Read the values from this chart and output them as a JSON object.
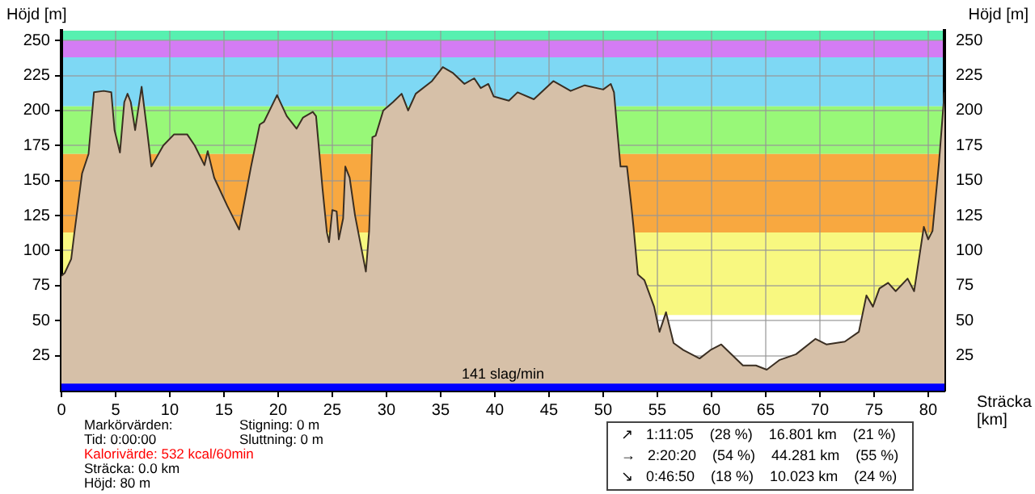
{
  "chart_data": {
    "type": "area",
    "ylabel": "Höjd [m]",
    "y2label": "Höjd [m]",
    "xlabel": "Sträcka [km]",
    "x": [
      0,
      0.3,
      0.9,
      1.2,
      1.9,
      2.5,
      3.0,
      3.9,
      4.6,
      4.9,
      5.4,
      5.8,
      6.1,
      6.4,
      6.8,
      7.4,
      7.9,
      8.3,
      9.4,
      10.4,
      11.6,
      12.3,
      13.2,
      13.5,
      14.1,
      15.3,
      16.4,
      17.5,
      18.3,
      18.7,
      19.9,
      20.8,
      21.7,
      22.3,
      23.2,
      23.5,
      24.1,
      24.5,
      24.7,
      25.0,
      25.4,
      25.6,
      26.0,
      26.2,
      26.6,
      27.1,
      27.5,
      28.1,
      28.4,
      28.7,
      29.0,
      29.7,
      30.6,
      31.4,
      32.0,
      32.7,
      34.2,
      35.2,
      36.1,
      37.2,
      38.1,
      38.7,
      39.4,
      39.9,
      41.3,
      42.1,
      43.6,
      45.4,
      47.0,
      48.3,
      50.0,
      50.7,
      51.0,
      51.3,
      51.6,
      52.2,
      52.6,
      52.8,
      53.2,
      53.8,
      54.7,
      55.2,
      55.8,
      56.5,
      57.4,
      58.9,
      59.9,
      60.9,
      62.9,
      64.1,
      65.1,
      66.3,
      67.8,
      69.6,
      70.6,
      72.3,
      73.6,
      74.3,
      74.9,
      75.5,
      76.3,
      77.0,
      78.1,
      78.7,
      79.6,
      80.0,
      80.4,
      81.0,
      81.5
    ],
    "values": [
      82,
      84,
      94,
      113,
      155,
      169,
      213,
      214,
      213,
      186,
      170,
      206,
      212,
      206,
      186,
      217,
      186,
      160,
      175,
      183,
      183,
      175,
      161,
      171,
      152,
      132,
      115,
      160,
      190,
      192,
      211,
      196,
      187,
      195,
      199,
      196,
      144,
      113,
      106,
      129,
      128,
      108,
      123,
      160,
      152,
      125,
      109,
      85,
      114,
      181,
      182,
      200,
      206,
      212,
      200,
      212,
      221,
      231,
      227,
      219,
      223,
      216,
      219,
      210,
      207,
      213,
      208,
      221,
      214,
      218,
      215,
      219,
      213,
      186,
      160,
      160,
      132,
      117,
      83,
      79,
      60,
      42,
      56,
      34,
      29,
      23,
      29,
      33,
      18,
      18,
      15,
      22,
      26,
      37,
      33,
      35,
      42,
      68,
      60,
      73,
      77,
      71,
      80,
      71,
      117,
      108,
      114,
      163,
      213
    ],
    "color": "#d6c0a8",
    "xlim": [
      0,
      81.5
    ],
    "xticks": [
      0,
      5,
      10,
      15,
      20,
      25,
      30,
      35,
      40,
      45,
      50,
      55,
      60,
      65,
      70,
      75,
      80
    ],
    "ylim": [
      0,
      257
    ],
    "yticks": [
      25,
      50,
      75,
      100,
      125,
      150,
      175,
      200,
      225,
      250
    ],
    "y2lim": [
      0,
      257
    ],
    "y2ticks": [
      25,
      50,
      75,
      100,
      125,
      150,
      175,
      200,
      225,
      250
    ],
    "grid": true,
    "bands": [
      {
        "axis": "y",
        "from": 250,
        "to": 257,
        "label": null,
        "color": "#57f0b0"
      },
      {
        "axis": "y",
        "from": 238,
        "to": 250,
        "label": null,
        "color": "#d47cf4"
      },
      {
        "axis": "y",
        "from": 203,
        "to": 238,
        "label": null,
        "color": "#7ed8f4"
      },
      {
        "axis": "y",
        "from": 169,
        "to": 203,
        "label": null,
        "color": "#98f878"
      },
      {
        "axis": "y",
        "from": 113,
        "to": 169,
        "label": null,
        "color": "#f8a840"
      },
      {
        "axis": "y",
        "from": 54,
        "to": 113,
        "label": null,
        "color": "#f8f880"
      },
      {
        "axis": "y",
        "from": 0,
        "to": 5,
        "label": "141 slag/min",
        "color": "#0000ff"
      }
    ],
    "annotations": [
      "Markörvärden:",
      "Tid: 0:00:00",
      "Kalorivärde: 532 kcal/60min",
      "Sträcka: 0.0 km",
      "Höjd: 80 m",
      "Stigning: 0 m",
      "Sluttning: 0 m",
      "↗   1:11:05    (28 %)    16.801 km    (21 %)",
      "→   2:20:20    (54 %)    44.281 km    (55 %)",
      "↘   0:46:50    (18 %)    10.023 km    (24 %)"
    ]
  }
}
